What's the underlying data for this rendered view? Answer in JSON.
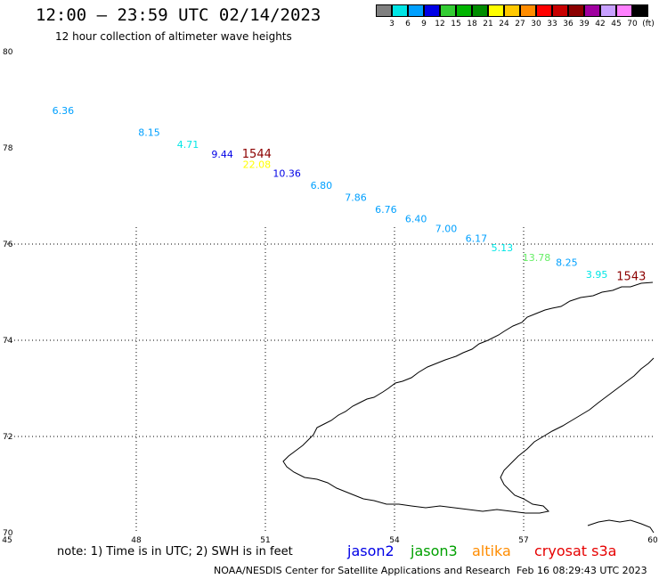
{
  "header": {
    "title": "12:00 — 23:59 UTC 02/14/2023",
    "subtitle": "12 hour collection of altimeter wave heights"
  },
  "legend": {
    "unit": "(ft)",
    "items": [
      {
        "label": "3",
        "color": "#808080"
      },
      {
        "label": "6",
        "color": "#00e6e6"
      },
      {
        "label": "9",
        "color": "#00a0ff"
      },
      {
        "label": "12",
        "color": "#0000e6"
      },
      {
        "label": "15",
        "color": "#33cc33"
      },
      {
        "label": "18",
        "color": "#00b400"
      },
      {
        "label": "21",
        "color": "#008c00"
      },
      {
        "label": "24",
        "color": "#ffff00"
      },
      {
        "label": "27",
        "color": "#ffc800"
      },
      {
        "label": "30",
        "color": "#ff8c00"
      },
      {
        "label": "33",
        "color": "#ff0000"
      },
      {
        "label": "36",
        "color": "#c80000"
      },
      {
        "label": "39",
        "color": "#8c0000"
      },
      {
        "label": "42",
        "color": "#a000a0"
      },
      {
        "label": "45",
        "color": "#c8a0ff"
      },
      {
        "label": "70",
        "color": "#ff80ff"
      },
      {
        "label": "",
        "color": "#000000"
      }
    ]
  },
  "map": {
    "lon_range": [
      45,
      60
    ],
    "lat_range": [
      70,
      80
    ],
    "lon_ticks": [
      "45",
      "48",
      "51",
      "54",
      "57",
      "60"
    ],
    "lat_ticks": [
      "70",
      "72",
      "74",
      "76",
      "78",
      "80"
    ],
    "grid_style": "dotted",
    "land_outline": "Novaya Zemlya coastline"
  },
  "observations": [
    {
      "label": "6.36",
      "lon": 46.3,
      "lat": 78.7,
      "color": "#00a0ff"
    },
    {
      "label": "8.15",
      "lon": 48.3,
      "lat": 78.25,
      "color": "#00a0ff"
    },
    {
      "label": "4.71",
      "lon": 49.2,
      "lat": 78.0,
      "color": "#00e6e6"
    },
    {
      "label": "9.44",
      "lon": 50.0,
      "lat": 77.8,
      "color": "#0000e6"
    },
    {
      "label": "1544",
      "lon": 50.8,
      "lat": 77.8,
      "color": "#8c0000"
    },
    {
      "label": "22.08",
      "lon": 50.8,
      "lat": 77.58,
      "color": "#ffff00"
    },
    {
      "label": "10.36",
      "lon": 51.5,
      "lat": 77.4,
      "color": "#0000e6"
    },
    {
      "label": "6.80",
      "lon": 52.3,
      "lat": 77.15,
      "color": "#00a0ff"
    },
    {
      "label": "7.86",
      "lon": 53.1,
      "lat": 76.9,
      "color": "#00a0ff"
    },
    {
      "label": "6.76",
      "lon": 53.8,
      "lat": 76.65,
      "color": "#00a0ff"
    },
    {
      "label": "6.40",
      "lon": 54.5,
      "lat": 76.45,
      "color": "#00a0ff"
    },
    {
      "label": "7.00",
      "lon": 55.2,
      "lat": 76.25,
      "color": "#00a0ff"
    },
    {
      "label": "6.17",
      "lon": 55.9,
      "lat": 76.05,
      "color": "#00a0ff"
    },
    {
      "label": "5.13",
      "lon": 56.5,
      "lat": 75.85,
      "color": "#00e6e6"
    },
    {
      "label": "13.78",
      "lon": 57.3,
      "lat": 75.65,
      "color": "#66ee66"
    },
    {
      "label": "8.25",
      "lon": 58.0,
      "lat": 75.55,
      "color": "#00a0ff"
    },
    {
      "label": "3.95",
      "lon": 58.7,
      "lat": 75.3,
      "color": "#00e6e6"
    },
    {
      "label": "1543",
      "lon": 59.5,
      "lat": 75.25,
      "color": "#8c0000"
    }
  ],
  "footer": {
    "note": "note:  1) Time is in UTC;  2) SWH is in feet",
    "satellites": [
      {
        "name": "jason2",
        "color": "#0000e6"
      },
      {
        "name": "jason3",
        "color": "#00a000"
      },
      {
        "name": "altika",
        "color": "#ff8c00"
      },
      {
        "name": "cryosat s3a",
        "color": "#e60000"
      }
    ],
    "credit": "NOAA/NESDIS Center for Satellite Applications and Research",
    "timestamp": "Feb 16 08:29:43 UTC 2023"
  }
}
